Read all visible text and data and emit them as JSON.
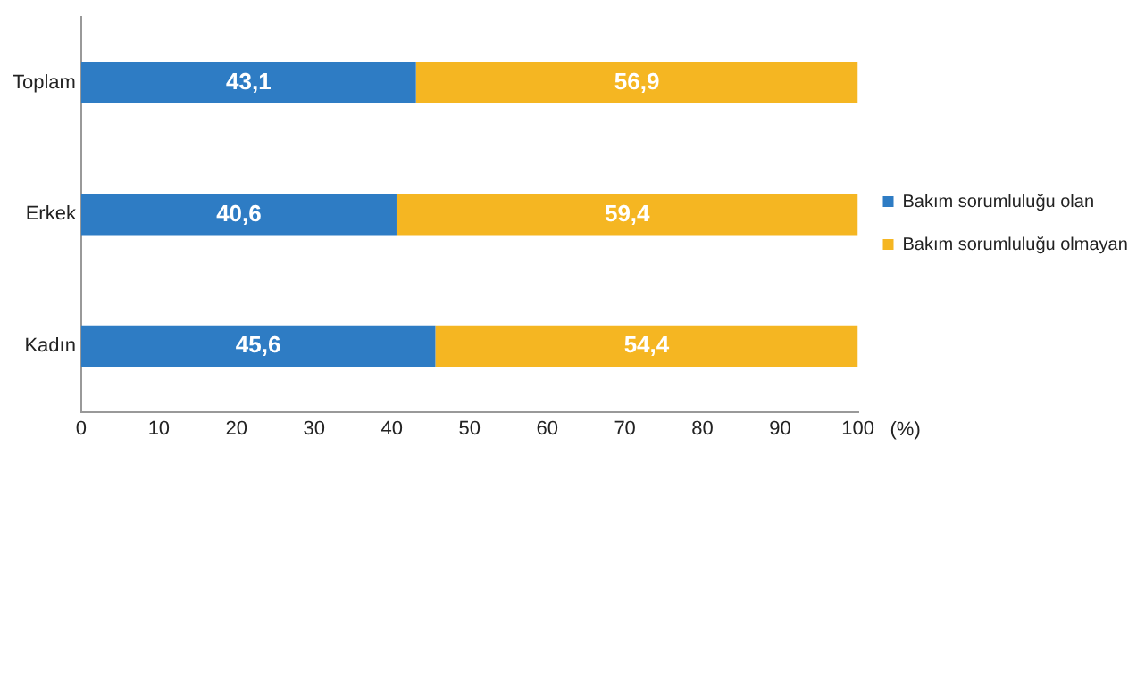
{
  "chart_data": {
    "type": "bar",
    "orientation": "horizontal",
    "stacked": true,
    "categories": [
      "Toplam",
      "Erkek",
      "Kadın"
    ],
    "xlabel": "(%)",
    "series": [
      {
        "name": "Bakım sorumluluğu olan",
        "color": "#2e7cc4",
        "values": [
          43.1,
          40.6,
          45.6
        ],
        "value_labels": [
          "43,1",
          "40,6",
          "45,6"
        ]
      },
      {
        "name": "Bakım sorumluluğu olmayan",
        "color": "#f5b622",
        "values": [
          56.9,
          59.4,
          54.4
        ],
        "value_labels": [
          "56,9",
          "59,4",
          "54,4"
        ]
      }
    ],
    "xlim": [
      0,
      100
    ],
    "xticks": [
      0,
      10,
      20,
      30,
      40,
      50,
      60,
      70,
      80,
      90,
      100
    ],
    "grid": false,
    "legend": "right"
  }
}
